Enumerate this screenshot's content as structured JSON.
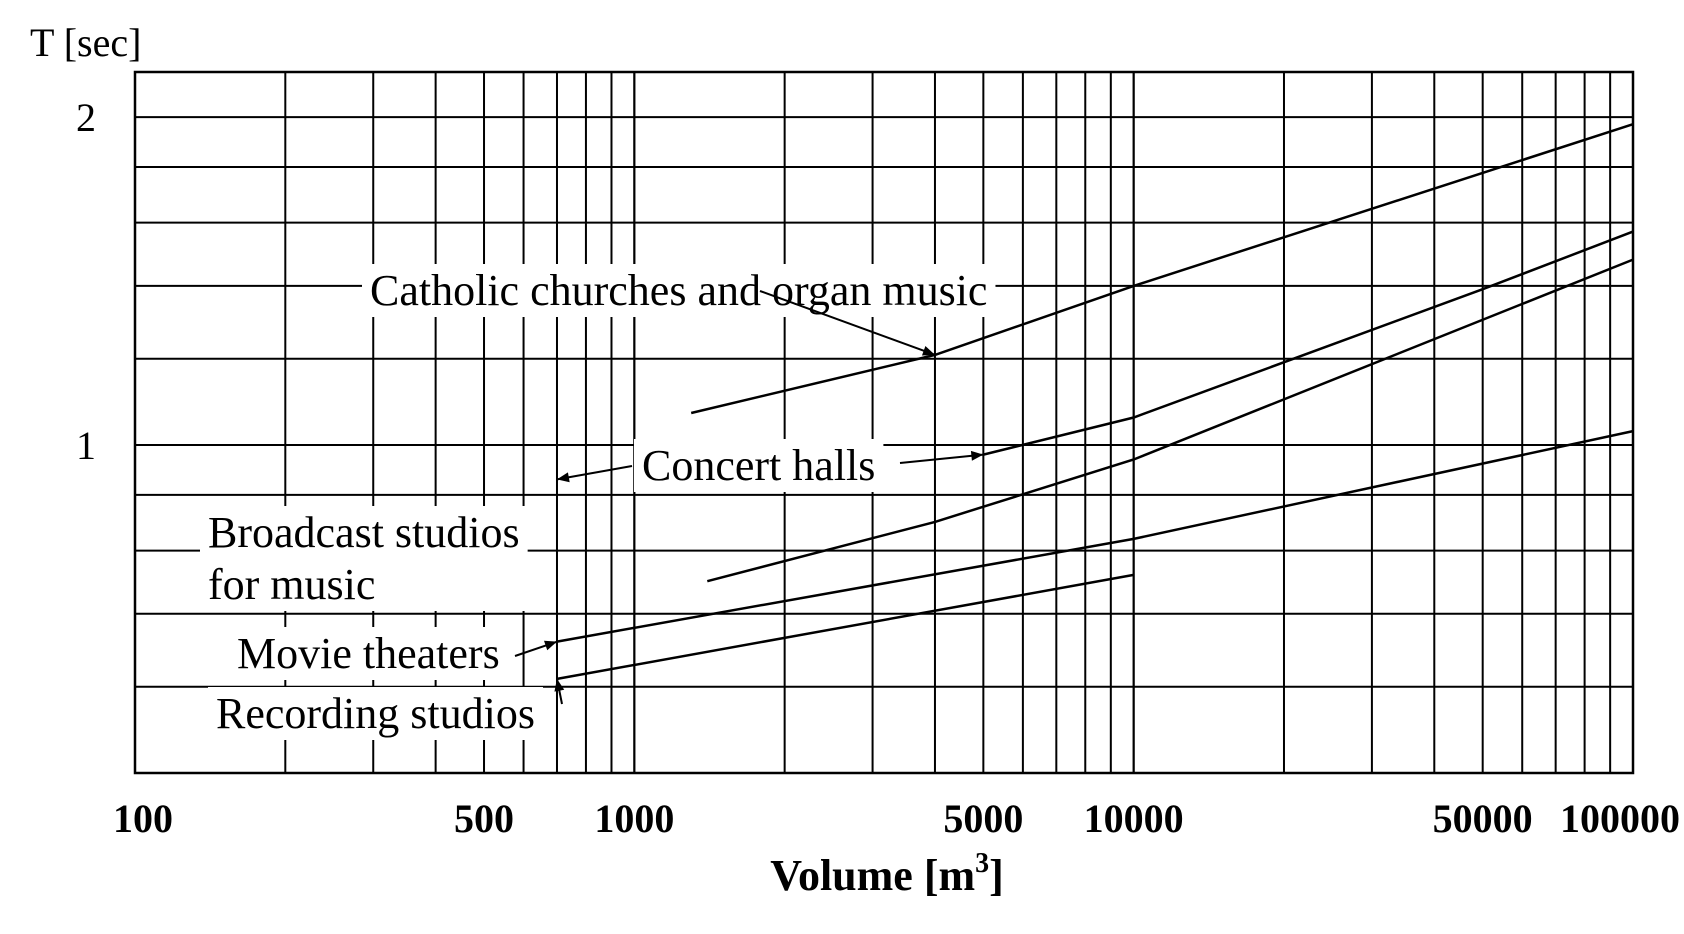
{
  "chart_data": {
    "type": "line",
    "title": "",
    "ylabel": "T [sec]",
    "xlabel": "Volume [m",
    "xlabel_sup": "3",
    "xlabel_close": "]",
    "x_scale": "log",
    "y_scale": "log",
    "xlim": [
      100,
      100000
    ],
    "ylim": [
      0.5,
      2.2
    ],
    "x_ticks": [
      {
        "value": 100,
        "label": "100"
      },
      {
        "value": 500,
        "label": "500"
      },
      {
        "value": 1000,
        "label": "1000"
      },
      {
        "value": 5000,
        "label": "5000"
      },
      {
        "value": 10000,
        "label": "10000"
      },
      {
        "value": 50000,
        "label": "50000"
      },
      {
        "value": 100000,
        "label": "100000"
      }
    ],
    "y_ticks": [
      {
        "value": 1,
        "label": "1"
      },
      {
        "value": 2,
        "label": "2"
      }
    ],
    "grid": true,
    "series": [
      {
        "name": "Catholic churches and organ music",
        "label_anchor": {
          "x": 4000,
          "y": 1.21
        },
        "points": [
          [
            1300,
            1.07
          ],
          [
            4000,
            1.21
          ],
          [
            10000,
            1.4
          ],
          [
            100000,
            1.97
          ]
        ]
      },
      {
        "name": "Concert halls",
        "label_anchor": {
          "x": 5000,
          "y": 0.98
        },
        "points": [
          [
            5000,
            0.98
          ],
          [
            10000,
            1.06
          ],
          [
            50000,
            1.39
          ],
          [
            100000,
            1.57
          ]
        ]
      },
      {
        "name": "Broadcast studios for music",
        "label_anchor": {
          "x": 1200,
          "y": 0.73
        },
        "points": [
          [
            1400,
            0.75
          ],
          [
            4000,
            0.85
          ],
          [
            10000,
            0.97
          ],
          [
            100000,
            1.48
          ]
        ]
      },
      {
        "name": "Movie theaters",
        "label_anchor": {
          "x": 700,
          "y": 0.66
        },
        "points": [
          [
            700,
            0.66
          ],
          [
            10000,
            0.82
          ],
          [
            100000,
            1.03
          ]
        ]
      },
      {
        "name": "Recording studios",
        "label_anchor": {
          "x": 700,
          "y": 0.61
        },
        "points": [
          [
            700,
            0.61
          ],
          [
            10000,
            0.76
          ]
        ]
      }
    ],
    "annotations": [
      {
        "id": "catholic",
        "lines": [
          "Catholic churches and organ music"
        ]
      },
      {
        "id": "concert",
        "lines": [
          "Concert halls"
        ]
      },
      {
        "id": "broadcast",
        "lines": [
          "Broadcast studios",
          "for music"
        ]
      },
      {
        "id": "movie",
        "lines": [
          "Movie theaters"
        ]
      },
      {
        "id": "recording",
        "lines": [
          "Recording studios"
        ]
      }
    ]
  }
}
